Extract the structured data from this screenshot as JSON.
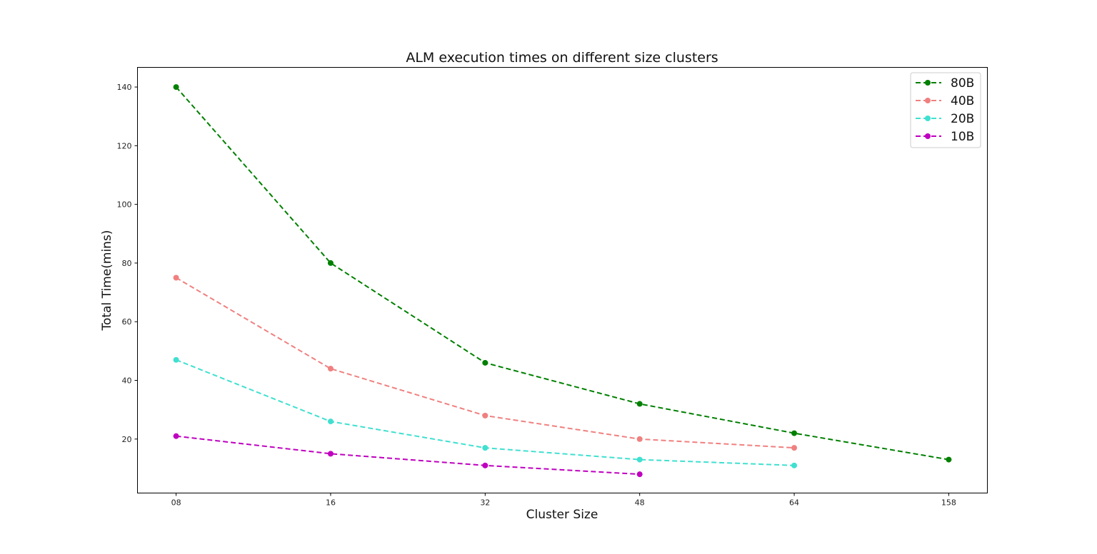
{
  "chart_data": {
    "type": "line",
    "title": "ALM execution times on different size clusters",
    "xlabel": "Cluster Size",
    "ylabel": "Total Time(mins)",
    "categories": [
      "08",
      "16",
      "32",
      "48",
      "64",
      "158"
    ],
    "yticks": [
      20,
      40,
      60,
      80,
      100,
      120,
      140
    ],
    "ylim": [
      1.6,
      146.7
    ],
    "grid": false,
    "legend_position": "top-right",
    "line_style": "dashed",
    "marker": "circle",
    "series": [
      {
        "name": "80B",
        "color": "#008000",
        "values": [
          140,
          80,
          46,
          32,
          22,
          13
        ]
      },
      {
        "name": "40B",
        "color": "#f08080",
        "values": [
          75,
          44,
          28,
          20,
          17,
          null
        ]
      },
      {
        "name": "20B",
        "color": "#40e0d0",
        "values": [
          47,
          26,
          17,
          13,
          11,
          null
        ]
      },
      {
        "name": "10B",
        "color": "#bf00bf",
        "values": [
          21,
          15,
          11,
          8,
          null,
          null
        ]
      }
    ]
  }
}
